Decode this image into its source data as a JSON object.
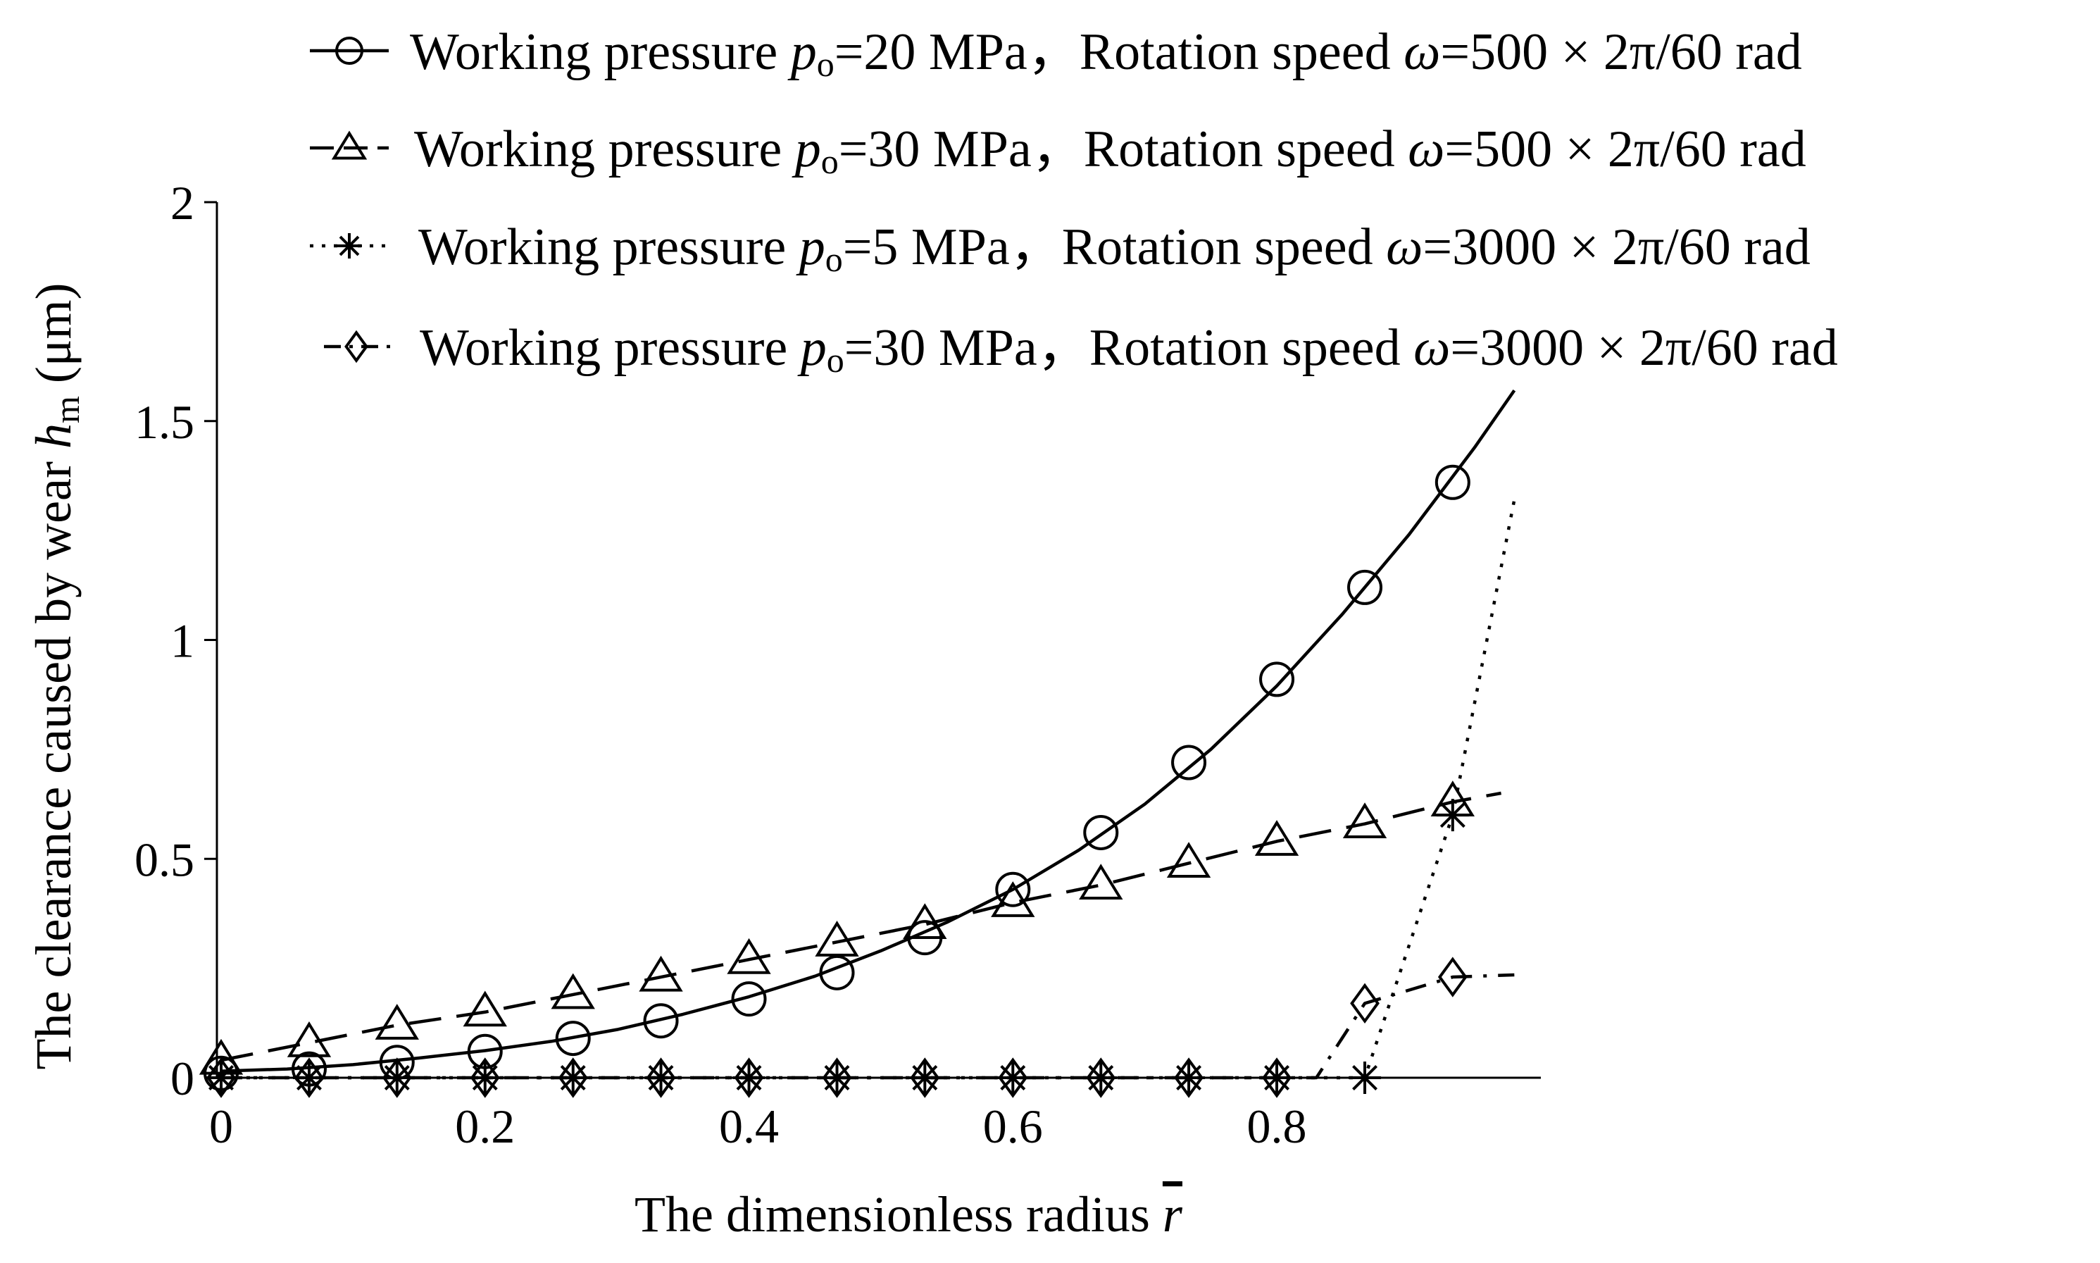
{
  "chart_data": {
    "type": "line",
    "title": "",
    "xlabel": "The dimensionless radius",
    "xlabel_symbol": "r",
    "ylabel": "The clearance caused by wear",
    "ylabel_symbol": "h",
    "ylabel_subscript": "m",
    "ylabel_unit": "(μm)",
    "xlim": [
      -0.005,
      1.0
    ],
    "ylim": [
      0,
      2
    ],
    "xticks": [
      0,
      0.2,
      0.4,
      0.6,
      0.8
    ],
    "xtick_labels": [
      "0",
      "0.2",
      "0.4",
      "0.6",
      "0.8"
    ],
    "yticks": [
      0,
      0.5,
      1,
      1.5,
      2
    ],
    "ytick_labels": [
      "0",
      "0.5",
      "1",
      "1.5",
      "2"
    ],
    "grid": false,
    "legend_position": "top",
    "series": [
      {
        "name": "Working pressure p=20 MPa, Rotation speed ω=500 × 2π/60 rad",
        "label_pre": "Working pressure ",
        "label_sym": "p",
        "label_sub": "o",
        "label_post": "=20 MPa，Rotation speed ",
        "label_sym2": "ω",
        "label_post2": "=500 × 2π/60 rad",
        "marker": "circle",
        "line_style": "solid",
        "x": [
          0,
          0.0667,
          0.1333,
          0.2,
          0.2667,
          0.3333,
          0.4,
          0.4667,
          0.5333,
          0.6,
          0.6667,
          0.7333,
          0.8,
          0.8667,
          0.9333
        ],
        "values": [
          0.01,
          0.02,
          0.035,
          0.06,
          0.09,
          0.13,
          0.18,
          0.24,
          0.32,
          0.43,
          0.56,
          0.72,
          0.91,
          1.12,
          1.36
        ],
        "curve_x": [
          0,
          0.05,
          0.1,
          0.15,
          0.2,
          0.25,
          0.3,
          0.35,
          0.4,
          0.45,
          0.5,
          0.55,
          0.6,
          0.65,
          0.7,
          0.75,
          0.8,
          0.85,
          0.9,
          0.95,
          0.98
        ],
        "curve_y": [
          0.015,
          0.02,
          0.03,
          0.045,
          0.062,
          0.083,
          0.11,
          0.145,
          0.185,
          0.232,
          0.29,
          0.355,
          0.43,
          0.52,
          0.625,
          0.75,
          0.895,
          1.06,
          1.24,
          1.44,
          1.57
        ]
      },
      {
        "name": "Working pressure p=30 MPa, Rotation speed ω=500 × 2π/60 rad",
        "label_pre": "Working pressure ",
        "label_sym": "p",
        "label_sub": "o",
        "label_post": "=30 MPa，Rotation speed ",
        "label_sym2": "ω",
        "label_post2": "=500 × 2π/60 rad",
        "marker": "triangle",
        "line_style": "dashed",
        "x": [
          0,
          0.0667,
          0.1333,
          0.2,
          0.2667,
          0.3333,
          0.4,
          0.4667,
          0.5333,
          0.6,
          0.6667,
          0.7333,
          0.8,
          0.8667,
          0.9333
        ],
        "values": [
          0.04,
          0.08,
          0.12,
          0.15,
          0.19,
          0.23,
          0.27,
          0.31,
          0.35,
          0.4,
          0.44,
          0.49,
          0.54,
          0.58,
          0.63
        ],
        "curve_x": [
          0,
          0.0667,
          0.1333,
          0.2,
          0.2667,
          0.3333,
          0.4,
          0.4667,
          0.5333,
          0.6,
          0.6667,
          0.7333,
          0.8,
          0.8667,
          0.9333,
          0.97
        ],
        "curve_y": [
          0.04,
          0.08,
          0.12,
          0.15,
          0.19,
          0.23,
          0.27,
          0.31,
          0.35,
          0.4,
          0.44,
          0.49,
          0.54,
          0.58,
          0.63,
          0.65
        ]
      },
      {
        "name": "Working pressure p=5 MPa, Rotation speed ω=3000 × 2π/60 rad",
        "label_pre": "Working pressure ",
        "label_sym": "p",
        "label_sub": "o",
        "label_post": "=5 MPa，Rotation speed ",
        "label_sym2": "ω",
        "label_post2": "=3000 × 2π/60 rad",
        "marker": "asterisk",
        "line_style": "dotted",
        "x": [
          0,
          0.0667,
          0.1333,
          0.2,
          0.2667,
          0.3333,
          0.4,
          0.4667,
          0.5333,
          0.6,
          0.6667,
          0.7333,
          0.8,
          0.8667,
          0.9333
        ],
        "values": [
          0,
          0,
          0,
          0,
          0,
          0,
          0,
          0,
          0,
          0,
          0,
          0,
          0,
          0,
          0.6
        ],
        "curve_x": [
          0,
          0.8667,
          0.9333,
          0.98
        ],
        "curve_y": [
          0,
          0,
          0.6,
          1.32
        ]
      },
      {
        "name": "Working pressure p=30 MPa, Rotation speed ω=3000 × 2π/60 rad",
        "label_pre": "Working pressure ",
        "label_sym": "p",
        "label_sub": "o",
        "label_post": "=30 MPa，Rotation speed ",
        "label_sym2": "ω",
        "label_post2": "=3000 × 2π/60 rad",
        "marker": "diamond",
        "line_style": "dashdot",
        "x": [
          0,
          0.0667,
          0.1333,
          0.2,
          0.2667,
          0.3333,
          0.4,
          0.4667,
          0.5333,
          0.6,
          0.6667,
          0.7333,
          0.8,
          0.8667,
          0.9333
        ],
        "values": [
          0,
          0,
          0,
          0,
          0,
          0,
          0,
          0,
          0,
          0,
          0,
          0,
          0,
          0.17,
          0.23
        ],
        "curve_x": [
          0,
          0.83,
          0.8667,
          0.9333,
          0.98
        ],
        "curve_y": [
          0,
          0,
          0.17,
          0.23,
          0.235
        ]
      }
    ]
  }
}
